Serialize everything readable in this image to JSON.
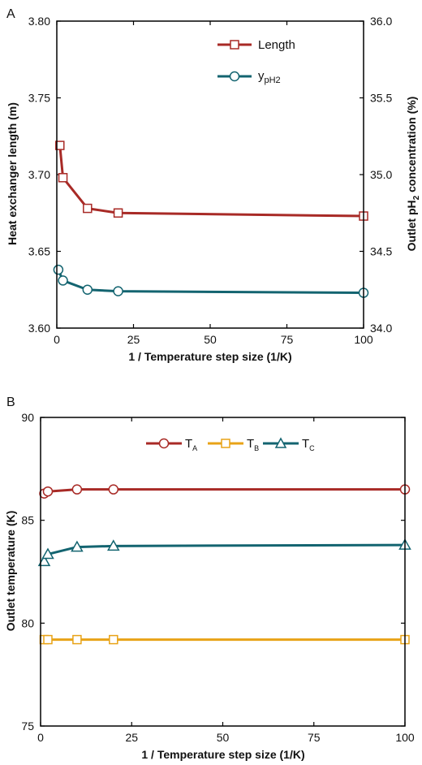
{
  "chart_data": [
    {
      "type": "line",
      "panel_label": "A",
      "xlabel": "1 / Temperature step size (1/K)",
      "ylabel": "Heat exchanger length (m)",
      "ylabel2_parts": [
        "Outlet pH",
        "2",
        " concentration (%)"
      ],
      "xlim": [
        0,
        100
      ],
      "ylim": [
        3.6,
        3.8
      ],
      "y2lim": [
        34.0,
        36.0
      ],
      "xticks": [
        "0",
        "25",
        "50",
        "75",
        "100"
      ],
      "yticks": [
        "3.60",
        "3.65",
        "3.70",
        "3.75",
        "3.80"
      ],
      "y2ticks": [
        "34.0",
        "34.5",
        "35.0",
        "35.5",
        "36.0"
      ],
      "legend_position": "top-right",
      "grid": false,
      "series": [
        {
          "name": "Length",
          "axis": "left",
          "color": "#A82A26",
          "marker": "square",
          "x": [
            1,
            2,
            10,
            20,
            100
          ],
          "y": [
            3.719,
            3.698,
            3.678,
            3.675,
            3.673
          ]
        },
        {
          "name_parts": [
            "y",
            "pH2"
          ],
          "axis": "right",
          "color": "#136470",
          "marker": "circle",
          "x": [
            0.5,
            2,
            10,
            20,
            100
          ],
          "y": [
            34.38,
            34.31,
            34.25,
            34.24,
            34.23
          ]
        }
      ]
    },
    {
      "type": "line",
      "panel_label": "B",
      "xlabel": "1 / Temperature step size (1/K)",
      "ylabel": "Outlet temperature (K)",
      "xlim": [
        0,
        100
      ],
      "ylim": [
        75,
        90
      ],
      "xticks": [
        "0",
        "25",
        "50",
        "75",
        "100"
      ],
      "yticks": [
        "75",
        "80",
        "85",
        "90"
      ],
      "legend_position": "top-center",
      "grid": false,
      "series": [
        {
          "name_parts": [
            "T",
            "A"
          ],
          "color": "#A82A26",
          "marker": "circle",
          "x": [
            1,
            2,
            10,
            20,
            100
          ],
          "y": [
            86.3,
            86.4,
            86.5,
            86.5,
            86.5
          ]
        },
        {
          "name_parts": [
            "T",
            "B"
          ],
          "color": "#E8A317",
          "marker": "square",
          "x": [
            1,
            2,
            10,
            20,
            100
          ],
          "y": [
            79.2,
            79.2,
            79.2,
            79.2,
            79.2
          ]
        },
        {
          "name_parts": [
            "T",
            "C"
          ],
          "color": "#136470",
          "marker": "triangle",
          "x": [
            1,
            2,
            10,
            20,
            100
          ],
          "y": [
            83.0,
            83.35,
            83.7,
            83.75,
            83.8
          ]
        }
      ]
    }
  ]
}
